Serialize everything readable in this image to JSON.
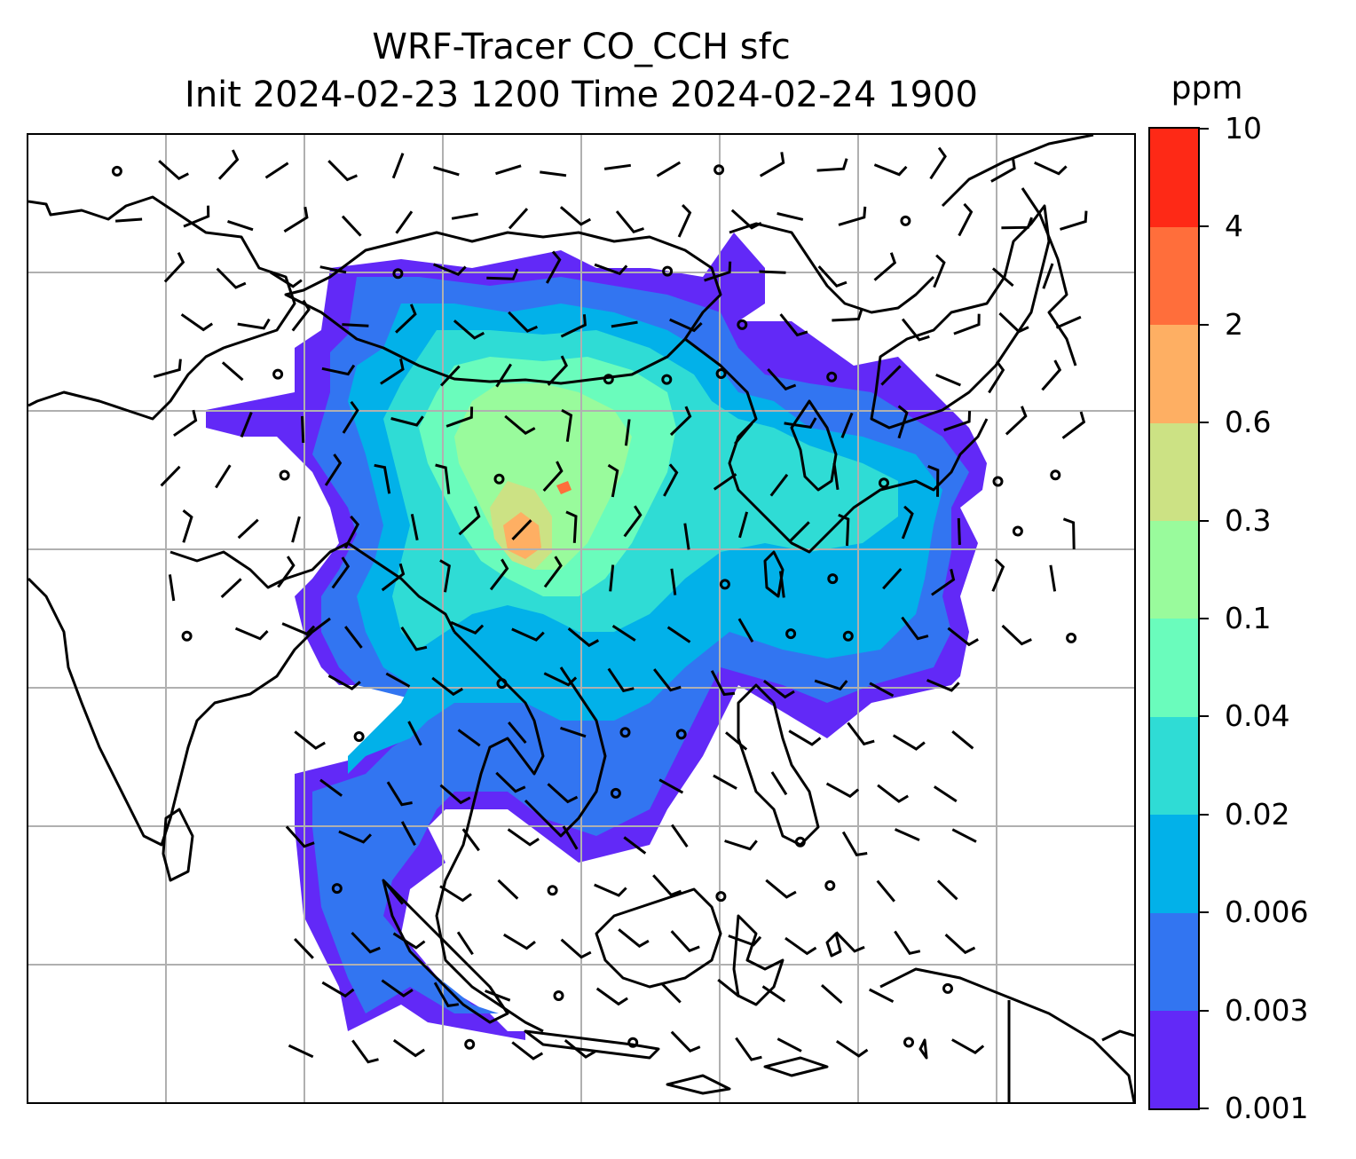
{
  "title": {
    "line1": "WRF-Tracer CO_CCH sfc",
    "line2": "Init 2024-02-23 1200 Time 2024-02-24 1900"
  },
  "colorbar": {
    "unit": "ppm",
    "levels": [
      "0.001",
      "0.003",
      "0.006",
      "0.02",
      "0.04",
      "0.1",
      "0.3",
      "0.6",
      "2",
      "4",
      "10"
    ],
    "colors": [
      "#6229f7",
      "#3275f1",
      "#02b1e9",
      "#2fdcd5",
      "#6afcbc",
      "#99fb9c",
      "#cce284",
      "#feaf63",
      "#ff6e3b",
      "#fe2916"
    ]
  },
  "map": {
    "gridline_color": "#b0b0b0",
    "coastline_color": "#000000"
  }
}
